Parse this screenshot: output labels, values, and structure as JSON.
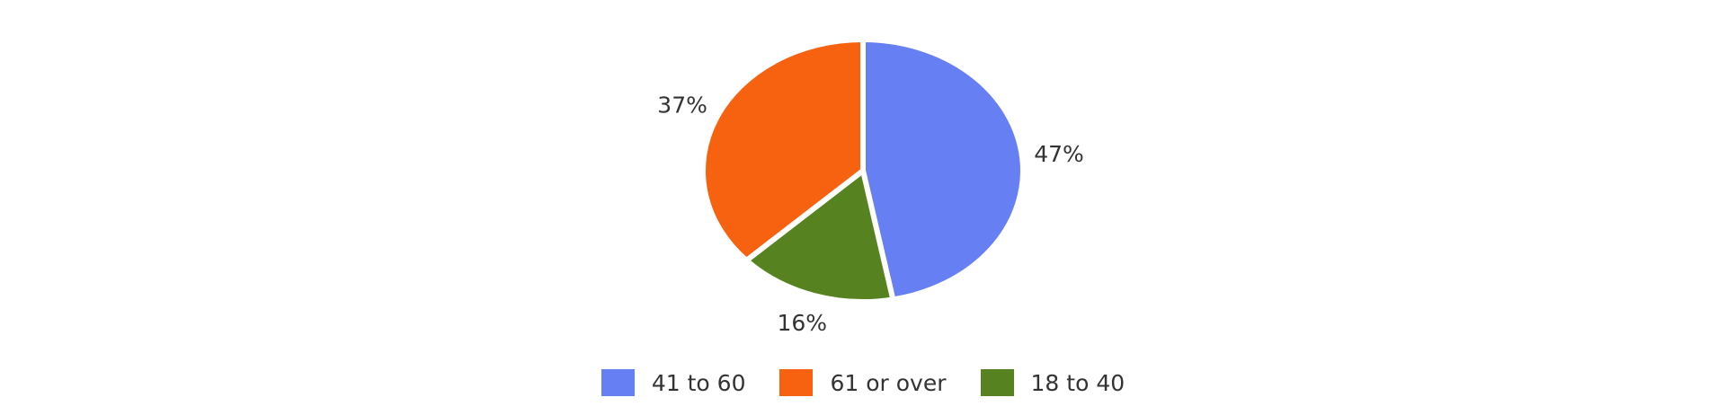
{
  "chart_data": {
    "type": "pie",
    "title": "",
    "slices": [
      {
        "label": "41 to 60",
        "value": 47,
        "display": "47%",
        "color": "#667FF2"
      },
      {
        "label": "18 to 40",
        "value": 16,
        "display": "16%",
        "color": "#56821F"
      },
      {
        "label": "61 or over",
        "value": 37,
        "display": "37%",
        "color": "#F6620F"
      }
    ],
    "legend": {
      "placement": "bottom",
      "items": [
        {
          "label": "41 to 60",
          "color": "#667FF2"
        },
        {
          "label": "61 or over",
          "color": "#F6620F"
        },
        {
          "label": "18 to 40",
          "color": "#56821F"
        }
      ]
    }
  }
}
